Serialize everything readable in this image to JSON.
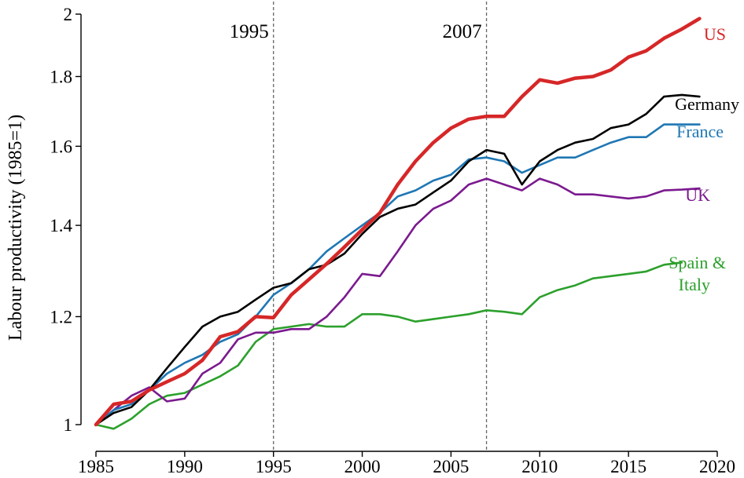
{
  "chart_data": {
    "type": "line",
    "ylabel": "Labour productivity (1985=1)",
    "y_scale": "log",
    "xlim": [
      1985,
      2020
    ],
    "ylim": [
      1,
      2
    ],
    "x_ticks": [
      "1985",
      "1990",
      "1995",
      "2000",
      "2005",
      "2010",
      "2015",
      "2020"
    ],
    "y_ticks": [
      "1",
      "1.2",
      "1.4",
      "1.6",
      "1.8",
      "2"
    ],
    "annotations": [
      {
        "label": "1995",
        "x": 1995
      },
      {
        "label": "2007",
        "x": 2007
      }
    ],
    "grid": false,
    "series": [
      {
        "name": "US",
        "color": "#d62728",
        "x": [
          1985,
          1986,
          1987,
          1988,
          1989,
          1990,
          1991,
          1992,
          1993,
          1994,
          1995,
          1996,
          1997,
          1998,
          1999,
          2000,
          2001,
          2002,
          2003,
          2004,
          2005,
          2006,
          2007,
          2008,
          2009,
          2010,
          2011,
          2012,
          2013,
          2014,
          2015,
          2016,
          2017,
          2018,
          2019
        ],
        "values": [
          1.0,
          1.035,
          1.04,
          1.06,
          1.075,
          1.09,
          1.115,
          1.16,
          1.17,
          1.2,
          1.198,
          1.245,
          1.278,
          1.312,
          1.35,
          1.39,
          1.43,
          1.5,
          1.56,
          1.61,
          1.65,
          1.675,
          1.683,
          1.683,
          1.74,
          1.79,
          1.78,
          1.795,
          1.8,
          1.82,
          1.86,
          1.88,
          1.92,
          1.95,
          1.985
        ]
      },
      {
        "name": "Germany",
        "color": "#000000",
        "x": [
          1985,
          1986,
          1987,
          1988,
          1989,
          1990,
          1991,
          1992,
          1993,
          1994,
          1995,
          1996,
          1997,
          1998,
          1999,
          2000,
          2001,
          2002,
          2003,
          2004,
          2005,
          2006,
          2007,
          2008,
          2009,
          2010,
          2011,
          2012,
          2013,
          2014,
          2015,
          2016,
          2017,
          2018,
          2019
        ],
        "values": [
          1.0,
          1.02,
          1.03,
          1.06,
          1.1,
          1.14,
          1.18,
          1.2,
          1.21,
          1.235,
          1.26,
          1.27,
          1.3,
          1.31,
          1.335,
          1.38,
          1.42,
          1.44,
          1.45,
          1.48,
          1.51,
          1.56,
          1.59,
          1.58,
          1.5,
          1.56,
          1.59,
          1.61,
          1.62,
          1.65,
          1.66,
          1.69,
          1.74,
          1.745,
          1.74
        ]
      },
      {
        "name": "France",
        "color": "#1f77b4",
        "x": [
          1985,
          1986,
          1987,
          1988,
          1989,
          1990,
          1991,
          1992,
          1993,
          1994,
          1995,
          1996,
          1997,
          1998,
          1999,
          2000,
          2001,
          2002,
          2003,
          2004,
          2005,
          2006,
          2007,
          2008,
          2009,
          2010,
          2011,
          2012,
          2013,
          2014,
          2015,
          2016,
          2017,
          2018,
          2019
        ],
        "values": [
          1.0,
          1.025,
          1.035,
          1.06,
          1.09,
          1.11,
          1.125,
          1.15,
          1.165,
          1.2,
          1.245,
          1.27,
          1.3,
          1.34,
          1.37,
          1.4,
          1.43,
          1.47,
          1.485,
          1.51,
          1.525,
          1.565,
          1.57,
          1.56,
          1.53,
          1.55,
          1.57,
          1.57,
          1.59,
          1.61,
          1.625,
          1.625,
          1.66,
          1.66,
          1.66
        ]
      },
      {
        "name": "UK",
        "color": "#7b1a8f",
        "x": [
          1985,
          1986,
          1987,
          1988,
          1989,
          1990,
          1991,
          1992,
          1993,
          1994,
          1995,
          1996,
          1997,
          1998,
          1999,
          2000,
          2001,
          2002,
          2003,
          2004,
          2005,
          2006,
          2007,
          2008,
          2009,
          2010,
          2011,
          2012,
          2013,
          2014,
          2015,
          2016,
          2017,
          2018,
          2019
        ],
        "values": [
          1.0,
          1.025,
          1.05,
          1.065,
          1.04,
          1.045,
          1.09,
          1.11,
          1.155,
          1.168,
          1.168,
          1.175,
          1.175,
          1.2,
          1.24,
          1.29,
          1.285,
          1.34,
          1.4,
          1.44,
          1.46,
          1.5,
          1.515,
          1.5,
          1.485,
          1.515,
          1.5,
          1.475,
          1.475,
          1.47,
          1.465,
          1.47,
          1.485,
          1.487,
          1.49
        ]
      },
      {
        "name": "Spain & Italy",
        "color": "#2ca02c",
        "x": [
          1985,
          1986,
          1987,
          1988,
          1989,
          1990,
          1991,
          1992,
          1993,
          1994,
          1995,
          1996,
          1997,
          1998,
          1999,
          2000,
          2001,
          2002,
          2003,
          2004,
          2005,
          2006,
          2007,
          2008,
          2009,
          2010,
          2011,
          2012,
          2013,
          2014,
          2015,
          2016,
          2017,
          2018
        ],
        "values": [
          1.0,
          0.993,
          1.01,
          1.035,
          1.05,
          1.055,
          1.07,
          1.085,
          1.105,
          1.15,
          1.175,
          1.18,
          1.185,
          1.18,
          1.18,
          1.205,
          1.205,
          1.2,
          1.19,
          1.195,
          1.2,
          1.205,
          1.213,
          1.21,
          1.205,
          1.24,
          1.255,
          1.265,
          1.28,
          1.285,
          1.29,
          1.295,
          1.31,
          1.315
        ]
      }
    ]
  }
}
